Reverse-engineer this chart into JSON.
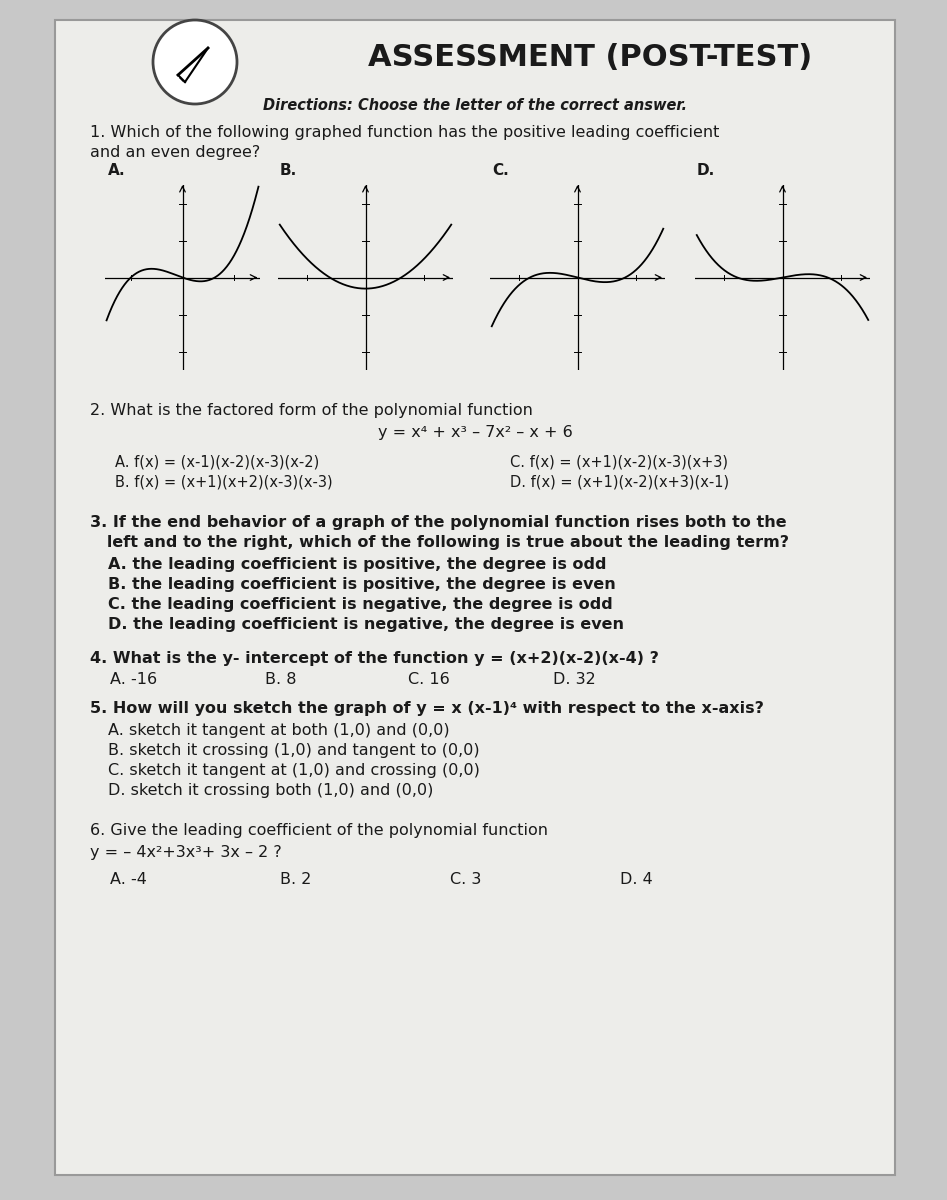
{
  "title": "ASSESSMENT (POST-TEST)",
  "bg_color": "#c8c8c8",
  "paper_color": "#ededea",
  "directions": "Directions: Choose the letter of the correct answer.",
  "q1_text1": "1. Which of the following graphed function has the positive leading coefficient",
  "q1_text2": "and an even degree?",
  "q2_title": "2. What is the factored form of the polynomial function",
  "q2_eq": "y = x⁴ + x³ – 7x² – x + 6",
  "q2_A": "A. f(x) = (x-1)(x-2)(x-3)(x-2)",
  "q2_B": "B. f(x) = (x+1)(x+2)(x-3)(x-3)",
  "q2_C": "C. f(x) = (x+1)(x-2)(x-3)(x+3)",
  "q2_D": "D. f(x) = (x+1)(x-2)(x+3)(x-1)",
  "q3_A": "A. the leading coefficient is positive, the degree is odd",
  "q3_B": "B. the leading coefficient is positive, the degree is even",
  "q3_C": "C. the leading coefficient is negative, the degree is odd",
  "q3_D": "D. the leading coefficient is negative, the degree is even",
  "q4_text": "4. What is the y- intercept of the function y = (x+2)(x-2)(x-4) ?",
  "q4_A": "A. -16",
  "q4_B": "B. 8",
  "q4_C": "C. 16",
  "q4_D": "D. 32",
  "q5_text": "5. How will you sketch the graph of y = x (x-1)⁴ with respect to the x-axis?",
  "q5_A": "A. sketch it tangent at both (1,0) and (0,0)",
  "q5_B": "B. sketch it crossing (1,0) and tangent to (0,0)",
  "q5_C": "C. sketch it tangent at (1,0) and crossing (0,0)",
  "q5_D": "D. sketch it crossing both (1,0) and (0,0)",
  "q6_text": "6. Give the leading coefficient of the polynomial function",
  "q6_eq": "y = – 4x²+3x³+ 3x – 2 ?",
  "q6_A": "A. -4",
  "q6_B": "B. 2",
  "q6_C": "C. 3",
  "q6_D": "D. 4",
  "text_color": "#1a1a1a",
  "title_fontsize": 22,
  "body_fontsize": 11.5,
  "small_fontsize": 10.5
}
